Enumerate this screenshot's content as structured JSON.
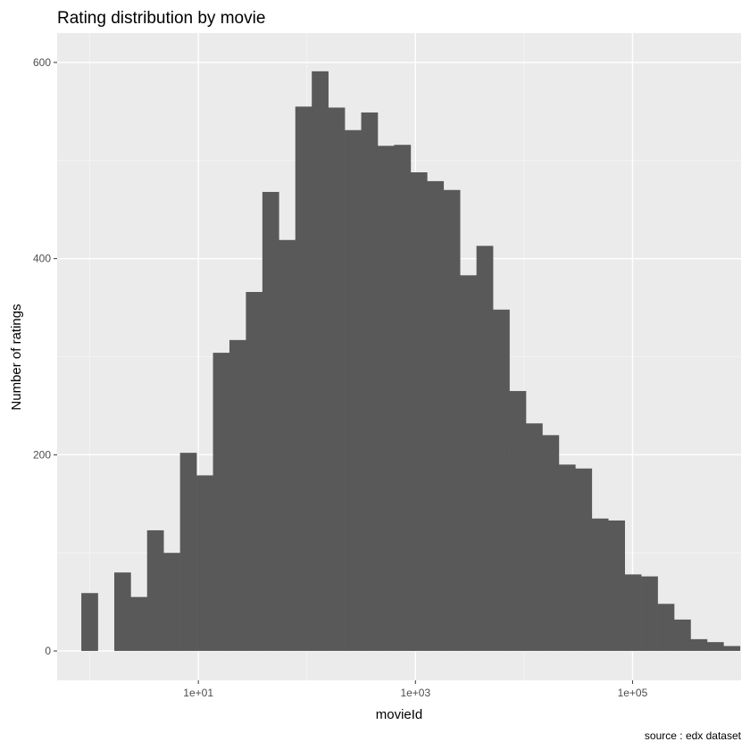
{
  "chart_data": {
    "type": "bar",
    "title": "Rating distribution by movie",
    "xlabel": "movieId",
    "ylabel": "Number of ratings",
    "caption": "source : edx dataset",
    "x_scale": "log10",
    "xlim": [
      0.5,
      1000000
    ],
    "ylim": [
      -30,
      630
    ],
    "x_ticks": [
      {
        "value": 10,
        "label": "1e+01"
      },
      {
        "value": 1000,
        "label": "1e+03"
      },
      {
        "value": 100000,
        "label": "1e+05"
      }
    ],
    "y_ticks": [
      {
        "value": 0,
        "label": "0"
      },
      {
        "value": 200,
        "label": "200"
      },
      {
        "value": 400,
        "label": "400"
      },
      {
        "value": 600,
        "label": "600"
      }
    ],
    "grid": true,
    "bins": [
      {
        "x_start": 0.835,
        "x_end": 1.185,
        "count": 59
      },
      {
        "x_start": 1.185,
        "x_end": 1.68,
        "count": 0
      },
      {
        "x_start": 1.68,
        "x_end": 2.38,
        "count": 80
      },
      {
        "x_start": 2.38,
        "x_end": 3.37,
        "count": 55
      },
      {
        "x_start": 3.37,
        "x_end": 4.78,
        "count": 123
      },
      {
        "x_start": 4.78,
        "x_end": 6.78,
        "count": 100
      },
      {
        "x_start": 6.78,
        "x_end": 9.62,
        "count": 202
      },
      {
        "x_start": 9.62,
        "x_end": 13.64,
        "count": 179
      },
      {
        "x_start": 13.64,
        "x_end": 19.33,
        "count": 304
      },
      {
        "x_start": 19.33,
        "x_end": 27.42,
        "count": 317
      },
      {
        "x_start": 27.42,
        "x_end": 38.88,
        "count": 366
      },
      {
        "x_start": 38.88,
        "x_end": 55.14,
        "count": 468
      },
      {
        "x_start": 55.14,
        "x_end": 78.2,
        "count": 419
      },
      {
        "x_start": 78.2,
        "x_end": 110.9,
        "count": 555
      },
      {
        "x_start": 110.9,
        "x_end": 157.3,
        "count": 591
      },
      {
        "x_start": 157.3,
        "x_end": 223.1,
        "count": 554
      },
      {
        "x_start": 223.1,
        "x_end": 316.4,
        "count": 531
      },
      {
        "x_start": 316.4,
        "x_end": 448.7,
        "count": 549
      },
      {
        "x_start": 448.7,
        "x_end": 636.4,
        "count": 515
      },
      {
        "x_start": 636.4,
        "x_end": 902.5,
        "count": 516
      },
      {
        "x_start": 902.5,
        "x_end": 1280,
        "count": 488
      },
      {
        "x_start": 1280,
        "x_end": 1815,
        "count": 479
      },
      {
        "x_start": 1815,
        "x_end": 2574,
        "count": 470
      },
      {
        "x_start": 2574,
        "x_end": 3651,
        "count": 383
      },
      {
        "x_start": 3651,
        "x_end": 5178,
        "count": 413
      },
      {
        "x_start": 5178,
        "x_end": 7343,
        "count": 348
      },
      {
        "x_start": 7343,
        "x_end": 10414,
        "count": 265
      },
      {
        "x_start": 10414,
        "x_end": 14770,
        "count": 232
      },
      {
        "x_start": 14770,
        "x_end": 20946,
        "count": 220
      },
      {
        "x_start": 20946,
        "x_end": 29706,
        "count": 190
      },
      {
        "x_start": 29706,
        "x_end": 42129,
        "count": 186
      },
      {
        "x_start": 42129,
        "x_end": 59749,
        "count": 135
      },
      {
        "x_start": 59749,
        "x_end": 84736,
        "count": 133
      },
      {
        "x_start": 84736,
        "x_end": 120172,
        "count": 78
      },
      {
        "x_start": 120172,
        "x_end": 170430,
        "count": 76
      },
      {
        "x_start": 170430,
        "x_end": 241701,
        "count": 48
      },
      {
        "x_start": 241701,
        "x_end": 342788,
        "count": 32
      },
      {
        "x_start": 342788,
        "x_end": 486130,
        "count": 12
      },
      {
        "x_start": 486130,
        "x_end": 689450,
        "count": 9
      },
      {
        "x_start": 689450,
        "x_end": 977800,
        "count": 5
      }
    ],
    "colors": {
      "panel_background": "#ebebeb",
      "grid_major": "#ffffff",
      "grid_minor": "#f5f5f5",
      "bar_fill": "#595959",
      "tick_color": "#333333"
    }
  }
}
